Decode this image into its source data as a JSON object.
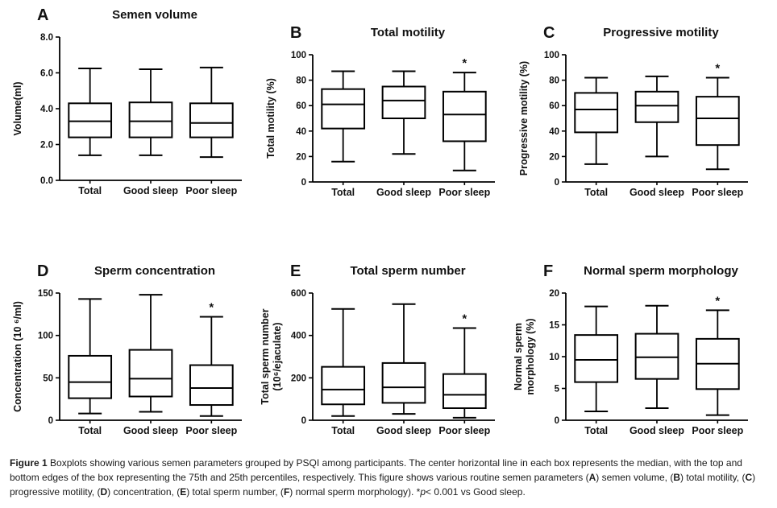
{
  "colors": {
    "line": "#000000",
    "background": "#ffffff",
    "text": "#111111"
  },
  "figure": {
    "caption_segments": [
      {
        "text": "Figure 1 ",
        "bold": true
      },
      {
        "text": "Boxplots showing various semen parameters grouped by PSQI among participants. The center horizontal line in each box represents the median, with the top and bottom edges of the box representing the 75th and 25th percentiles, respectively. This figure shows various routine semen parameters ("
      },
      {
        "text": "A",
        "bold": true
      },
      {
        "text": ") semen volume, ("
      },
      {
        "text": "B",
        "bold": true
      },
      {
        "text": ") total motility, ("
      },
      {
        "text": "C",
        "bold": true
      },
      {
        "text": ") progressive motility, ("
      },
      {
        "text": "D",
        "bold": true
      },
      {
        "text": ") concentration, ("
      },
      {
        "text": "E",
        "bold": true
      },
      {
        "text": ") total sperm number, ("
      },
      {
        "text": "F",
        "bold": true
      },
      {
        "text": ") normal sperm morphology). *"
      },
      {
        "text": "p",
        "italic": true
      },
      {
        "text": "< 0.001 vs Good sleep."
      }
    ]
  },
  "chart_data": [
    {
      "type": "box",
      "panel": "A",
      "title": "Semen volume",
      "ylabel_lines": [
        "Volume(ml)"
      ],
      "ylim": [
        0,
        8
      ],
      "yticks": [
        0,
        2,
        4,
        6,
        8
      ],
      "ytick_labels": [
        "0.0",
        "2.0",
        "4.0",
        "6.0",
        "8.0"
      ],
      "categories": [
        "Total",
        "Good sleep",
        "Poor sleep"
      ],
      "boxes": [
        {
          "min": 1.4,
          "q1": 2.4,
          "median": 3.3,
          "q3": 4.3,
          "max": 6.25
        },
        {
          "min": 1.4,
          "q1": 2.4,
          "median": 3.3,
          "q3": 4.35,
          "max": 6.2
        },
        {
          "min": 1.3,
          "q1": 2.4,
          "median": 3.2,
          "q3": 4.3,
          "max": 6.3
        }
      ],
      "significance": null
    },
    {
      "type": "box",
      "panel": "B",
      "title": "Total motility",
      "ylabel_lines": [
        "Total motility (%)"
      ],
      "ylim": [
        0,
        100
      ],
      "yticks": [
        0,
        20,
        40,
        60,
        80,
        100
      ],
      "ytick_labels": [
        "0",
        "20",
        "40",
        "60",
        "80",
        "100"
      ],
      "categories": [
        "Total",
        "Good sleep",
        "Poor sleep"
      ],
      "boxes": [
        {
          "min": 16,
          "q1": 42,
          "median": 61,
          "q3": 73,
          "max": 87
        },
        {
          "min": 22,
          "q1": 50,
          "median": 64,
          "q3": 75,
          "max": 87
        },
        {
          "min": 9,
          "q1": 32,
          "median": 53,
          "q3": 71,
          "max": 86
        }
      ],
      "significance": {
        "category_index": 2,
        "symbol": "*"
      }
    },
    {
      "type": "box",
      "panel": "C",
      "title": "Progressive motility",
      "ylabel_lines": [
        "Progressive motility (%)"
      ],
      "ylim": [
        0,
        100
      ],
      "yticks": [
        0,
        20,
        40,
        60,
        80,
        100
      ],
      "ytick_labels": [
        "0",
        "20",
        "40",
        "60",
        "80",
        "100"
      ],
      "categories": [
        "Total",
        "Good sleep",
        "Poor sleep"
      ],
      "boxes": [
        {
          "min": 14,
          "q1": 39,
          "median": 57,
          "q3": 70,
          "max": 82
        },
        {
          "min": 20,
          "q1": 47,
          "median": 60,
          "q3": 71,
          "max": 83
        },
        {
          "min": 10,
          "q1": 29,
          "median": 50,
          "q3": 67,
          "max": 82
        }
      ],
      "significance": {
        "category_index": 2,
        "symbol": "*"
      }
    },
    {
      "type": "box",
      "panel": "D",
      "title": "Sperm concentration",
      "ylabel_lines": [
        "Concentration (10 ⁶/ml)"
      ],
      "ylim": [
        0,
        150
      ],
      "yticks": [
        0,
        50,
        100,
        150
      ],
      "ytick_labels": [
        "0",
        "50",
        "100",
        "150"
      ],
      "categories": [
        "Total",
        "Good sleep",
        "Poor sleep"
      ],
      "boxes": [
        {
          "min": 8,
          "q1": 26,
          "median": 45,
          "q3": 76,
          "max": 143
        },
        {
          "min": 10,
          "q1": 28,
          "median": 49,
          "q3": 83,
          "max": 148
        },
        {
          "min": 5,
          "q1": 18,
          "median": 38,
          "q3": 65,
          "max": 122
        }
      ],
      "significance": {
        "category_index": 2,
        "symbol": "*"
      }
    },
    {
      "type": "box",
      "panel": "E",
      "title": "Total sperm number",
      "ylabel_lines": [
        "Total sperm number",
        "(10⁶/ejaculate)"
      ],
      "ylim": [
        0,
        600
      ],
      "yticks": [
        0,
        200,
        400,
        600
      ],
      "ytick_labels": [
        "0",
        "200",
        "400",
        "600"
      ],
      "categories": [
        "Total",
        "Good sleep",
        "Poor sleep"
      ],
      "boxes": [
        {
          "min": 20,
          "q1": 75,
          "median": 145,
          "q3": 252,
          "max": 525
        },
        {
          "min": 30,
          "q1": 82,
          "median": 155,
          "q3": 270,
          "max": 548
        },
        {
          "min": 12,
          "q1": 57,
          "median": 120,
          "q3": 218,
          "max": 435
        }
      ],
      "significance": {
        "category_index": 2,
        "symbol": "*"
      }
    },
    {
      "type": "box",
      "panel": "F",
      "title": "Normal sperm morphology",
      "ylabel_lines": [
        "Normal sperm",
        "morphology (%)"
      ],
      "ylim": [
        0,
        20
      ],
      "yticks": [
        0,
        5,
        10,
        15,
        20
      ],
      "ytick_labels": [
        "0",
        "5",
        "10",
        "15",
        "20"
      ],
      "categories": [
        "Total",
        "Good sleep",
        "Poor sleep"
      ],
      "boxes": [
        {
          "min": 1.4,
          "q1": 6.0,
          "median": 9.5,
          "q3": 13.4,
          "max": 17.9
        },
        {
          "min": 1.9,
          "q1": 6.5,
          "median": 9.9,
          "q3": 13.6,
          "max": 18.0
        },
        {
          "min": 0.8,
          "q1": 4.9,
          "median": 8.9,
          "q3": 12.8,
          "max": 17.3
        }
      ],
      "significance": {
        "category_index": 2,
        "symbol": "*"
      }
    }
  ]
}
